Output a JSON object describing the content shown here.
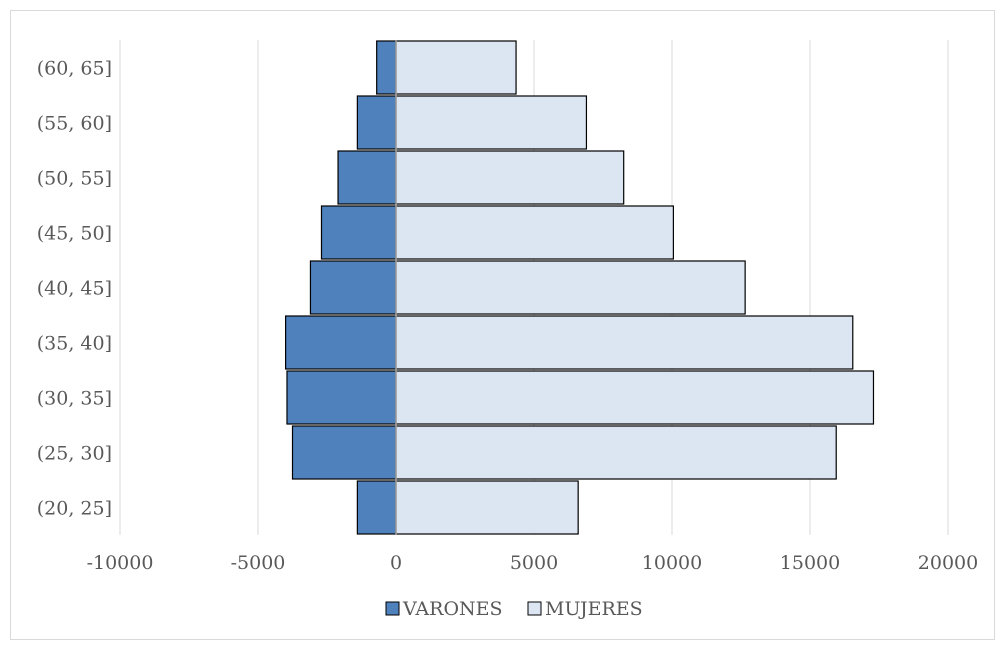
{
  "chart_data": {
    "type": "bar",
    "orientation": "horizontal",
    "stacked": true,
    "categories": [
      "(20, 25]",
      "(25, 30]",
      "(30, 35]",
      "(35, 40]",
      "(40, 45]",
      "(45, 50]",
      "(50, 55]",
      "(55, 60]",
      "(60, 65]"
    ],
    "series": [
      {
        "name": "VARONES",
        "values": [
          -1400,
          -3750,
          -3950,
          -4000,
          -3100,
          -2700,
          -2100,
          -1400,
          -700
        ],
        "color": "#4f81bd"
      },
      {
        "name": "MUJERES",
        "values": [
          6600,
          15950,
          17300,
          16550,
          12650,
          10050,
          8250,
          6900,
          4350
        ],
        "color": "#dce6f2"
      }
    ],
    "title": "",
    "xlabel": "",
    "ylabel": "",
    "xlim": [
      -10000,
      20000
    ],
    "xticks": [
      "-10000",
      "-5000",
      "0",
      "5000",
      "10000",
      "15000",
      "20000"
    ],
    "grid": "vertical",
    "legend": "bottom-center"
  }
}
